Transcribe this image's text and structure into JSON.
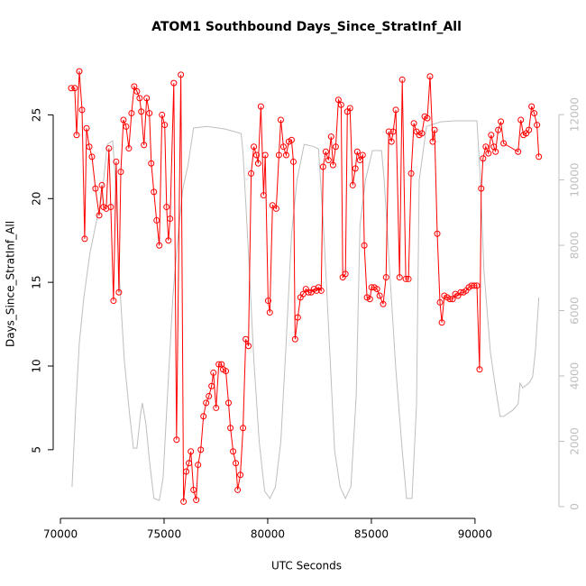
{
  "chart_data": {
    "type": "line",
    "title": "ATOM1 Southbound Days_Since_StratInf_All",
    "x_label": "UTC Seconds",
    "y_label": "Days_Since_StratInf_All",
    "xlim": [
      69650,
      94050
    ],
    "xticks": [
      70000,
      75000,
      80000,
      85000,
      90000
    ],
    "ylim": [
      0.9,
      28.9
    ],
    "yticks": [
      5,
      10,
      15,
      20,
      25
    ],
    "y2lim": [
      -360,
      13990
    ],
    "y2ticks": [
      0,
      2000,
      4000,
      6000,
      8000,
      10000,
      12000
    ],
    "series": [
      {
        "color": "#ff0000",
        "marker": "circle",
        "x": [
          70520,
          70690,
          70780,
          70910,
          71040,
          71170,
          71260,
          71390,
          71520,
          71690,
          71870,
          72000,
          72080,
          72210,
          72340,
          72430,
          72560,
          72690,
          72820,
          72910,
          73040,
          73170,
          73300,
          73430,
          73560,
          73690,
          73820,
          73900,
          74030,
          74160,
          74290,
          74380,
          74510,
          74640,
          74770,
          74900,
          75030,
          75120,
          75210,
          75290,
          75470,
          75600,
          75810,
          75940,
          76070,
          76200,
          76290,
          76420,
          76550,
          76640,
          76770,
          76900,
          77030,
          77160,
          77290,
          77380,
          77510,
          77640,
          77770,
          77850,
          77980,
          78110,
          78200,
          78330,
          78460,
          78550,
          78680,
          78810,
          78940,
          79070,
          79200,
          79330,
          79460,
          79540,
          79670,
          79800,
          79880,
          80020,
          80100,
          80230,
          80410,
          80540,
          80630,
          80760,
          80890,
          81020,
          81150,
          81240,
          81320,
          81450,
          81580,
          81710,
          81840,
          81970,
          82100,
          82230,
          82360,
          82450,
          82580,
          82670,
          82800,
          82930,
          83060,
          83150,
          83280,
          83410,
          83540,
          83620,
          83750,
          83840,
          83970,
          84100,
          84230,
          84320,
          84450,
          84580,
          84660,
          84790,
          84930,
          85010,
          85140,
          85270,
          85400,
          85570,
          85710,
          85840,
          85970,
          86050,
          86180,
          86360,
          86490,
          86660,
          86790,
          86920,
          87050,
          87180,
          87310,
          87440,
          87570,
          87700,
          87830,
          87960,
          88050,
          88180,
          88310,
          88400,
          88520,
          88660,
          88790,
          88920,
          89050,
          89180,
          89310,
          89440,
          89570,
          89700,
          89830,
          89960,
          90090,
          90220,
          90300,
          90390,
          90520,
          90650,
          90780,
          90910,
          90990,
          91120,
          91250,
          91380,
          92080,
          92210,
          92340,
          92470,
          92600,
          92730,
          92860,
          92990,
          93080
        ],
        "values": [
          26.6,
          26.6,
          23.8,
          27.6,
          25.3,
          17.6,
          24.2,
          23.1,
          22.5,
          20.6,
          19.0,
          20.8,
          19.5,
          19.4,
          23.0,
          19.5,
          13.9,
          22.2,
          14.4,
          21.6,
          24.7,
          24.3,
          23.0,
          25.1,
          26.7,
          26.4,
          26.0,
          25.2,
          23.2,
          26.0,
          25.1,
          22.1,
          20.4,
          18.7,
          17.2,
          25.0,
          24.4,
          19.5,
          17.5,
          18.8,
          26.9,
          5.6,
          27.4,
          1.9,
          3.7,
          4.2,
          4.9,
          2.6,
          2.0,
          4.1,
          5.0,
          7.0,
          7.8,
          8.2,
          8.8,
          9.6,
          7.5,
          10.1,
          10.1,
          9.8,
          9.7,
          7.8,
          6.3,
          4.9,
          4.2,
          2.6,
          3.5,
          6.3,
          11.6,
          11.2,
          21.5,
          23.1,
          22.6,
          22.1,
          25.5,
          20.2,
          22.6,
          13.9,
          13.2,
          19.6,
          19.4,
          22.6,
          24.7,
          23.1,
          22.6,
          23.4,
          23.5,
          22.2,
          11.6,
          12.9,
          14.1,
          14.3,
          14.6,
          14.4,
          14.4,
          14.6,
          14.5,
          14.7,
          14.5,
          21.9,
          22.8,
          22.3,
          23.7,
          22.0,
          23.1,
          25.9,
          25.6,
          15.3,
          15.5,
          25.2,
          25.4,
          20.8,
          21.8,
          22.8,
          22.3,
          22.6,
          17.2,
          14.1,
          14.0,
          14.7,
          14.7,
          14.6,
          14.2,
          13.7,
          15.3,
          24.0,
          23.4,
          24.0,
          25.3,
          15.3,
          27.1,
          15.2,
          15.2,
          21.5,
          24.5,
          24.0,
          23.8,
          23.9,
          24.9,
          24.8,
          27.3,
          23.4,
          24.1,
          17.9,
          13.8,
          12.6,
          14.2,
          14.1,
          14.0,
          14.0,
          14.3,
          14.2,
          14.4,
          14.4,
          14.5,
          14.7,
          14.8,
          14.8,
          14.8,
          9.8,
          20.6,
          22.4,
          23.1,
          22.7,
          23.8,
          23.1,
          22.8,
          24.1,
          24.6,
          23.3,
          22.8,
          24.7,
          23.8,
          23.9,
          24.1,
          25.5,
          25.1,
          24.4,
          22.5
        ]
      },
      {
        "color": "#bebebe",
        "axis": "y2",
        "x": [
          70560,
          70740,
          70910,
          71130,
          71430,
          71740,
          72000,
          72260,
          72520,
          72650,
          72820,
          73080,
          73340,
          73520,
          73690,
          73860,
          73950,
          74120,
          74290,
          74510,
          74770,
          74950,
          75160,
          75420,
          75640,
          75900,
          76160,
          76420,
          77070,
          77940,
          78720,
          78810,
          79070,
          79330,
          79590,
          79850,
          80110,
          80370,
          80630,
          80890,
          81150,
          81410,
          81760,
          82190,
          82450,
          82710,
          82970,
          83230,
          83490,
          83750,
          84010,
          84270,
          84450,
          84710,
          85050,
          85490,
          85620,
          85880,
          86180,
          86490,
          86700,
          86960,
          87180,
          87310,
          87660,
          88350,
          89050,
          90090,
          90260,
          90430,
          90740,
          91000,
          91210,
          91380,
          91820,
          92080,
          92170,
          92300,
          92600,
          92780,
          92910,
          93080
        ],
        "values": [
          600,
          3090,
          5020,
          6400,
          7780,
          8740,
          9490,
          11090,
          11200,
          9990,
          7230,
          4470,
          2810,
          1790,
          1790,
          2810,
          3170,
          2540,
          1430,
          250,
          190,
          880,
          3370,
          6400,
          8060,
          9710,
          10480,
          11590,
          11640,
          11560,
          11420,
          10810,
          7780,
          4470,
          1990,
          470,
          250,
          610,
          1990,
          5020,
          8330,
          9990,
          11090,
          11030,
          10950,
          8330,
          5020,
          1710,
          610,
          250,
          610,
          3370,
          8610,
          9990,
          10900,
          10900,
          9990,
          7230,
          4190,
          1710,
          250,
          250,
          3090,
          9990,
          11640,
          11780,
          11810,
          11810,
          9990,
          7230,
          4740,
          3590,
          2760,
          2760,
          2950,
          3140,
          3780,
          3640,
          3780,
          3970,
          4740,
          6400
        ]
      }
    ]
  }
}
